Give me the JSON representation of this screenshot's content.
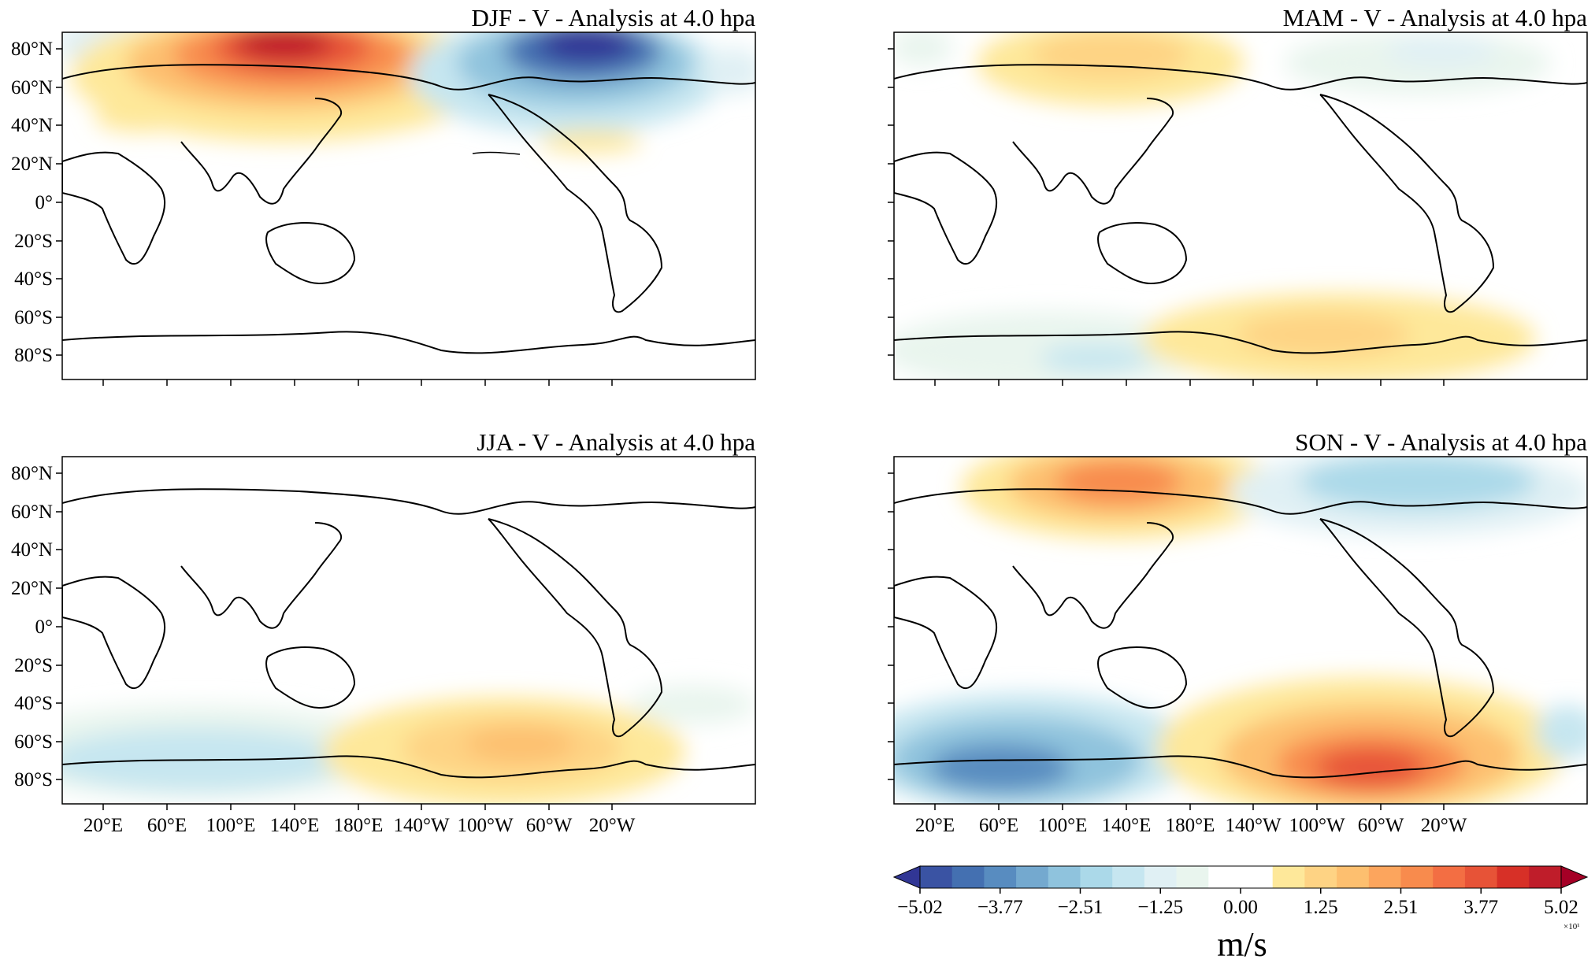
{
  "panels": [
    {
      "title": "DJF - V - Analysis at 4.0 hpa"
    },
    {
      "title": "MAM - V - Analysis at 4.0 hpa"
    },
    {
      "title": "JJA - V - Analysis at 4.0 hpa"
    },
    {
      "title": "SON - V - Analysis at 4.0 hpa"
    }
  ],
  "lat_ticks": [
    "80°N",
    "60°N",
    "40°N",
    "20°N",
    "0°",
    "20°S",
    "40°S",
    "60°S",
    "80°S"
  ],
  "lon_ticks": [
    "20°E",
    "60°E",
    "100°E",
    "140°E",
    "180°E",
    "140°W",
    "100°W",
    "60°W",
    "20°W"
  ],
  "colorbar": {
    "tick_labels": [
      "−5.02",
      "−3.77",
      "−2.51",
      "−1.25",
      "0.00",
      "1.25",
      "2.51",
      "3.77",
      "5.02"
    ],
    "multiplier": "×10¹",
    "unit": "m/s",
    "colors": [
      "#313695",
      "#3a53a3",
      "#4470b1",
      "#588cc0",
      "#74a9cf",
      "#8fc3dd",
      "#abd9e9",
      "#c6e6f0",
      "#e0f0f4",
      "#e9f5ee",
      "#ffffff",
      "#ffffff",
      "#fee89a",
      "#fed384",
      "#fdbf6f",
      "#fca55d",
      "#f88b4d",
      "#f36e43",
      "#e75337",
      "#d73027",
      "#bf1d2a",
      "#a50026"
    ]
  }
}
